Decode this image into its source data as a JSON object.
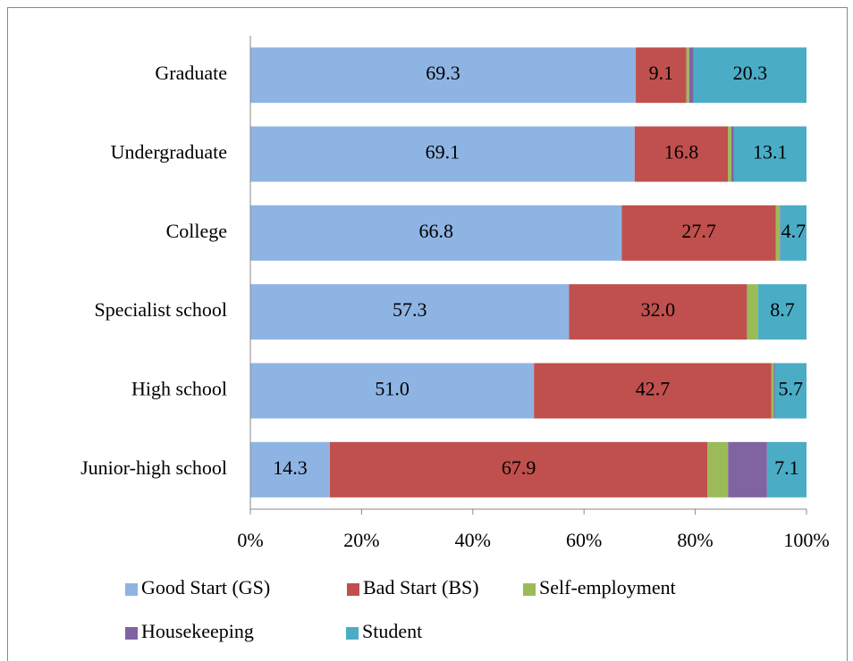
{
  "chart_data": {
    "type": "stacked-barh",
    "categories": [
      "Graduate",
      "Undergraduate",
      "College",
      "Specialist school",
      "High school",
      "Junior-high school"
    ],
    "series": [
      {
        "name": "Good Start (GS)",
        "color": "#8eb4e3",
        "values": [
          69.3,
          69.1,
          66.8,
          57.3,
          51.0,
          14.3
        ],
        "value_labels": [
          "69.3",
          "69.1",
          "66.8",
          "57.3",
          "51.0",
          "14.3"
        ]
      },
      {
        "name": "Bad Start (BS)",
        "color": "#c0504d",
        "values": [
          9.1,
          16.8,
          27.7,
          32.0,
          42.7,
          67.9
        ],
        "value_labels": [
          "9.1",
          "16.8",
          "27.7",
          "32.0",
          "42.7",
          "67.9"
        ]
      },
      {
        "name": "Self-employment",
        "color": "#9bbb59",
        "values": [
          0.5,
          0.6,
          0.7,
          2.0,
          0.4,
          3.7
        ]
      },
      {
        "name": "Housekeeping",
        "color": "#8064a2",
        "values": [
          0.8,
          0.4,
          0.1,
          0.0,
          0.2,
          7.0
        ]
      },
      {
        "name": "Student",
        "color": "#4bacc6",
        "values": [
          20.3,
          13.1,
          4.7,
          8.7,
          5.7,
          7.1
        ],
        "value_labels": [
          "20.3",
          "13.1",
          "4.7",
          "8.7",
          "5.7",
          "7.1"
        ]
      }
    ],
    "xlim": [
      0,
      100
    ],
    "xticks": [
      {
        "value": 0,
        "label": "0%"
      },
      {
        "value": 20,
        "label": "20%"
      },
      {
        "value": 40,
        "label": "40%"
      },
      {
        "value": 60,
        "label": "60%"
      },
      {
        "value": 80,
        "label": "80%"
      },
      {
        "value": 100,
        "label": "100%"
      }
    ],
    "legend": "bottom"
  }
}
